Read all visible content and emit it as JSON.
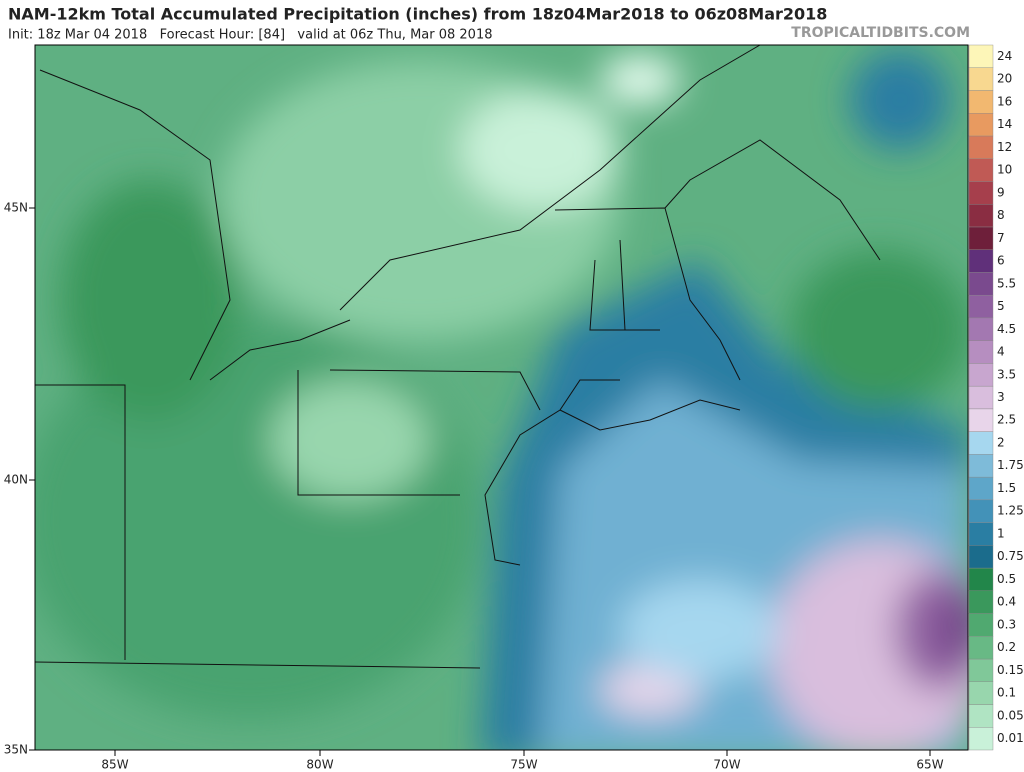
{
  "header": {
    "title": "NAM-12km Total Accumulated Precipitation (inches) from 18z04Mar2018 to 06z08Mar2018",
    "subtitle": "Init: 18z Mar 04 2018   Forecast Hour: [84]   valid at 06z Thu, Mar 08 2018",
    "brand": "TROPICALTIDBITS.COM"
  },
  "map": {
    "lon_labels": [
      "85W",
      "80W",
      "75W",
      "70W",
      "65W"
    ],
    "lat_labels": [
      "45N",
      "40N",
      "35N"
    ]
  },
  "colorbar": [
    {
      "label": "0.01",
      "color": "#c9f1d9"
    },
    {
      "label": "0.05",
      "color": "#b0e4c3"
    },
    {
      "label": "0.1",
      "color": "#98d6ad"
    },
    {
      "label": "0.15",
      "color": "#80c899"
    },
    {
      "label": "0.2",
      "color": "#68b985"
    },
    {
      "label": "0.3",
      "color": "#50a970"
    },
    {
      "label": "0.4",
      "color": "#3a985c"
    },
    {
      "label": "0.5",
      "color": "#22864a"
    },
    {
      "label": "0.75",
      "color": "#1b6c8c"
    },
    {
      "label": "1",
      "color": "#2a7ea3"
    },
    {
      "label": "1.25",
      "color": "#4392b8"
    },
    {
      "label": "1.5",
      "color": "#5ea6c9"
    },
    {
      "label": "1.75",
      "color": "#7ebbd9"
    },
    {
      "label": "2",
      "color": "#a6d7ef"
    },
    {
      "label": "2.5",
      "color": "#e8d5ea"
    },
    {
      "label": "3",
      "color": "#d9bedd"
    },
    {
      "label": "3.5",
      "color": "#c8a6cf"
    },
    {
      "label": "4",
      "color": "#b68ec0"
    },
    {
      "label": "4.5",
      "color": "#a378b1"
    },
    {
      "label": "5",
      "color": "#8f60a0"
    },
    {
      "label": "5.5",
      "color": "#7a4a8e"
    },
    {
      "label": "6",
      "color": "#60307a"
    },
    {
      "label": "7",
      "color": "#6e1f3a"
    },
    {
      "label": "8",
      "color": "#8a2d42"
    },
    {
      "label": "9",
      "color": "#a63f4c"
    },
    {
      "label": "10",
      "color": "#c05a55"
    },
    {
      "label": "12",
      "color": "#d87a5a"
    },
    {
      "label": "14",
      "color": "#e89a60"
    },
    {
      "label": "16",
      "color": "#f2b870"
    },
    {
      "label": "20",
      "color": "#f8d890"
    },
    {
      "label": "24",
      "color": "#fdf6b8"
    }
  ]
}
